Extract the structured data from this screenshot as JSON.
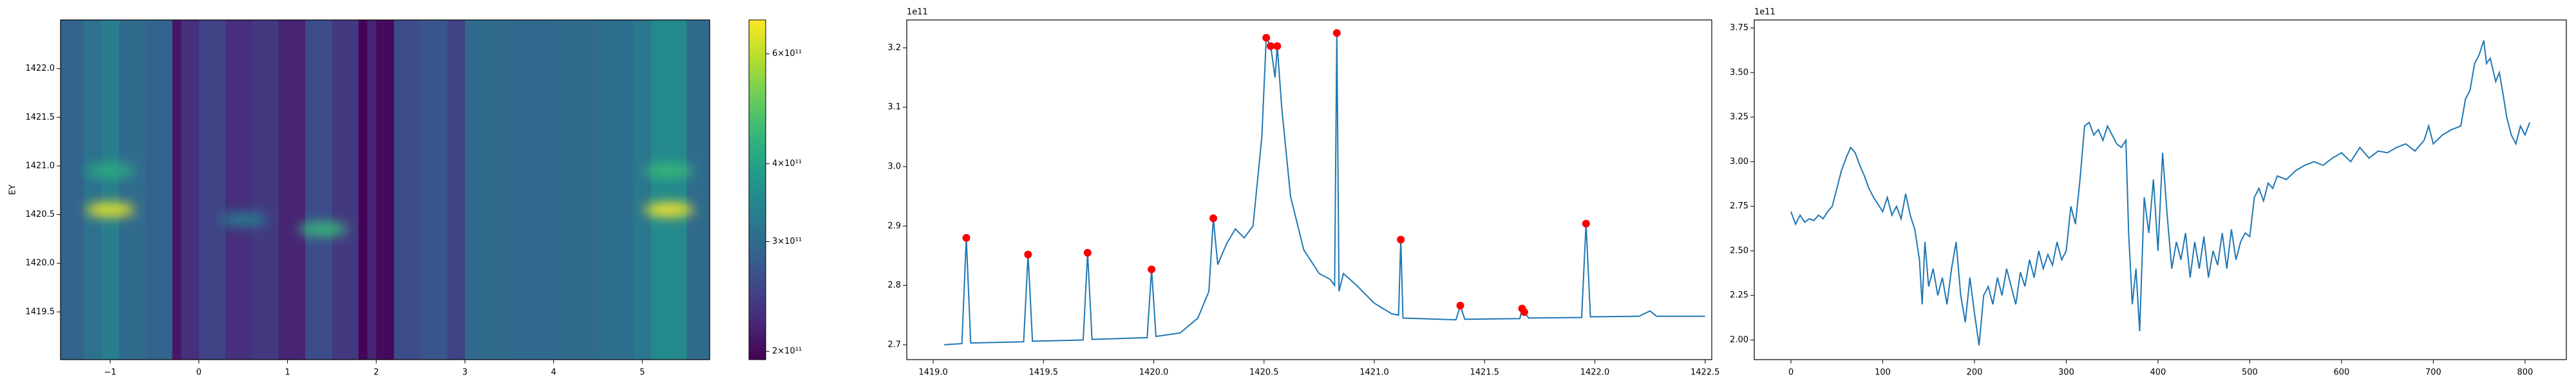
{
  "chart_data": [
    {
      "type": "heatmap",
      "ylabel": "EY",
      "colormap": "viridis",
      "x_edges": [
        -1.56,
        -1.3,
        -1.1,
        -0.9,
        -0.6,
        -0.3,
        -0.2,
        0,
        0.3,
        0.6,
        0.9,
        1.2,
        1.5,
        1.8,
        1.9,
        2.0,
        2.2,
        2.5,
        2.8,
        3.0,
        3.5,
        4.0,
        4.5,
        4.9,
        5.1,
        5.5,
        5.76
      ],
      "values": [
        290000000000.0,
        310000000000.0,
        330000000000.0,
        300000000000.0,
        290000000000.0,
        210000000000.0,
        230000000000.0,
        250000000000.0,
        230000000000.0,
        240000000000.0,
        220000000000.0,
        260000000000.0,
        240000000000.0,
        197000000000.0,
        220000000000.0,
        200000000000.0,
        260000000000.0,
        270000000000.0,
        250000000000.0,
        300000000000.0,
        295000000000.0,
        300000000000.0,
        305000000000.0,
        320000000000.0,
        350000000000.0,
        300000000000.0
      ],
      "spots": [
        {
          "x": -1.0,
          "y": 1420.55,
          "value": 650000000000.0
        },
        {
          "x": -1.0,
          "y": 1420.95,
          "value": 420000000000.0
        },
        {
          "x": 0.5,
          "y": 1420.45,
          "value": 330000000000.0
        },
        {
          "x": 1.4,
          "y": 1420.35,
          "value": 450000000000.0
        },
        {
          "x": 5.3,
          "y": 1420.55,
          "value": 670000000000.0
        },
        {
          "x": 5.3,
          "y": 1420.95,
          "value": 450000000000.0
        }
      ],
      "xlim": [
        -1.56,
        5.76
      ],
      "ylim": [
        1419.01,
        1422.5
      ],
      "xticks": [
        {
          "value": -1,
          "label": "−1"
        },
        0,
        1,
        2,
        3,
        4,
        5
      ],
      "yticks": [
        1419.5,
        {
          "value": 1420,
          "label": "1420.0"
        },
        1420.5,
        {
          "value": 1421,
          "label": "1421.0"
        },
        1421.5,
        {
          "value": 1422,
          "label": "1422.0"
        }
      ],
      "colorbar": {
        "scale": "log",
        "lim": [
          194000000000.0,
          680000000000.0
        ],
        "ticks": [
          {
            "value": 200000000000.0,
            "label": "2×10¹¹"
          },
          {
            "value": 300000000000.0,
            "label": "3×10¹¹"
          },
          {
            "value": 400000000000.0,
            "label": "4×10¹¹"
          },
          {
            "value": 600000000000.0,
            "label": "6×10¹¹"
          }
        ]
      }
    },
    {
      "type": "line",
      "offset_label": "1e11",
      "color": "#1f77b4",
      "x": [
        1419.05,
        1419.13,
        1419.15,
        1419.17,
        1419.41,
        1419.43,
        1419.45,
        1419.68,
        1419.7,
        1419.72,
        1419.97,
        1419.99,
        1420.01,
        1420.12,
        1420.2,
        1420.25,
        1420.27,
        1420.29,
        1420.33,
        1420.37,
        1420.41,
        1420.45,
        1420.49,
        1420.51,
        1420.53,
        1420.55,
        1420.56,
        1420.58,
        1420.62,
        1420.68,
        1420.75,
        1420.8,
        1420.82,
        1420.83,
        1420.84,
        1420.86,
        1420.92,
        1421.0,
        1421.08,
        1421.11,
        1421.12,
        1421.13,
        1421.37,
        1421.39,
        1421.41,
        1421.66,
        1421.67,
        1421.68,
        1421.7,
        1421.94,
        1421.96,
        1421.98,
        1422.2,
        1422.25,
        1422.28,
        1422.5
      ],
      "values": [
        2.7,
        2.702,
        2.88,
        2.703,
        2.705,
        2.852,
        2.706,
        2.708,
        2.855,
        2.709,
        2.712,
        2.827,
        2.714,
        2.72,
        2.745,
        2.79,
        2.913,
        2.835,
        2.87,
        2.895,
        2.88,
        2.9,
        3.05,
        3.217,
        3.203,
        3.15,
        3.203,
        3.1,
        2.95,
        2.86,
        2.82,
        2.81,
        2.8,
        3.225,
        2.79,
        2.82,
        2.8,
        2.77,
        2.752,
        2.75,
        2.877,
        2.745,
        2.742,
        2.766,
        2.743,
        2.744,
        2.761,
        2.755,
        2.745,
        2.746,
        2.904,
        2.747,
        2.748,
        2.757,
        2.748,
        2.748
      ],
      "peaks": {
        "color": "red",
        "x": [
          1419.15,
          1419.43,
          1419.7,
          1419.99,
          1420.27,
          1420.51,
          1420.53,
          1420.56,
          1420.83,
          1421.12,
          1421.39,
          1421.67,
          1421.68,
          1421.96
        ],
        "values": [
          2.88,
          2.852,
          2.855,
          2.827,
          2.913,
          3.217,
          3.203,
          3.203,
          3.225,
          2.877,
          2.766,
          2.761,
          2.755,
          2.904
        ]
      },
      "xlim": [
        1418.88,
        1422.53
      ],
      "ylim": [
        2.675,
        3.247
      ],
      "xticks": [
        {
          "value": 1419,
          "label": "1419.0"
        },
        1419.5,
        {
          "value": 1420,
          "label": "1420.0"
        },
        1420.5,
        {
          "value": 1421,
          "label": "1421.0"
        },
        1421.5,
        {
          "value": 1422,
          "label": "1422.0"
        },
        1422.5
      ],
      "yticks": [
        2.7,
        2.8,
        2.9,
        {
          "value": 3,
          "label": "3.0"
        },
        3.1,
        3.2
      ]
    },
    {
      "type": "line",
      "offset_label": "1e11",
      "color": "#1f77b4",
      "x": [
        0,
        5,
        10,
        15,
        20,
        25,
        30,
        35,
        40,
        45,
        50,
        55,
        60,
        65,
        70,
        75,
        80,
        85,
        90,
        95,
        100,
        105,
        110,
        115,
        120,
        125,
        130,
        135,
        140,
        143,
        146,
        150,
        155,
        160,
        165,
        170,
        175,
        180,
        185,
        190,
        195,
        200,
        205,
        210,
        215,
        220,
        225,
        230,
        235,
        240,
        245,
        250,
        255,
        260,
        265,
        270,
        275,
        280,
        285,
        290,
        295,
        300,
        305,
        310,
        315,
        320,
        325,
        330,
        335,
        340,
        345,
        350,
        355,
        360,
        365,
        368,
        372,
        376,
        380,
        385,
        390,
        395,
        400,
        405,
        410,
        415,
        420,
        425,
        430,
        435,
        440,
        445,
        450,
        455,
        460,
        465,
        470,
        475,
        480,
        485,
        490,
        495,
        500,
        505,
        510,
        515,
        520,
        525,
        530,
        540,
        550,
        560,
        570,
        580,
        590,
        600,
        610,
        620,
        630,
        640,
        650,
        660,
        670,
        680,
        690,
        695,
        700,
        710,
        720,
        730,
        735,
        740,
        745,
        750,
        755,
        758,
        762,
        768,
        772,
        776,
        780,
        785,
        790,
        795,
        800,
        805
      ],
      "values": [
        2.72,
        2.65,
        2.7,
        2.66,
        2.68,
        2.67,
        2.7,
        2.68,
        2.72,
        2.75,
        2.85,
        2.95,
        3.02,
        3.08,
        3.05,
        2.98,
        2.92,
        2.85,
        2.8,
        2.76,
        2.72,
        2.8,
        2.7,
        2.75,
        2.68,
        2.82,
        2.7,
        2.62,
        2.45,
        2.2,
        2.55,
        2.3,
        2.4,
        2.25,
        2.35,
        2.2,
        2.4,
        2.55,
        2.25,
        2.1,
        2.35,
        2.15,
        1.97,
        2.25,
        2.3,
        2.2,
        2.35,
        2.25,
        2.4,
        2.3,
        2.2,
        2.38,
        2.3,
        2.45,
        2.35,
        2.5,
        2.4,
        2.48,
        2.42,
        2.55,
        2.45,
        2.5,
        2.75,
        2.65,
        2.9,
        3.2,
        3.22,
        3.15,
        3.18,
        3.12,
        3.2,
        3.15,
        3.1,
        3.08,
        3.12,
        2.6,
        2.2,
        2.4,
        2.05,
        2.8,
        2.6,
        2.9,
        2.5,
        3.05,
        2.7,
        2.4,
        2.55,
        2.45,
        2.6,
        2.35,
        2.55,
        2.4,
        2.58,
        2.35,
        2.5,
        2.42,
        2.6,
        2.4,
        2.62,
        2.45,
        2.55,
        2.6,
        2.58,
        2.8,
        2.85,
        2.78,
        2.88,
        2.85,
        2.92,
        2.9,
        2.95,
        2.98,
        3.0,
        2.98,
        3.02,
        3.05,
        3.0,
        3.08,
        3.02,
        3.06,
        3.05,
        3.08,
        3.1,
        3.06,
        3.12,
        3.2,
        3.1,
        3.15,
        3.18,
        3.2,
        3.35,
        3.4,
        3.55,
        3.6,
        3.68,
        3.55,
        3.58,
        3.45,
        3.5,
        3.38,
        3.25,
        3.15,
        3.1,
        3.2,
        3.15,
        3.22
      ],
      "xlim": [
        -40,
        845
      ],
      "ylim": [
        1.89,
        3.795
      ],
      "xticks": [
        0,
        100,
        200,
        300,
        400,
        500,
        600,
        700,
        800
      ],
      "yticks": [
        {
          "value": 2,
          "label": "2.00"
        },
        2.25,
        {
          "value": 2.5,
          "label": "2.50"
        },
        2.75,
        {
          "value": 3,
          "label": "3.00"
        },
        3.25,
        {
          "value": 3.5,
          "label": "3.50"
        },
        3.75
      ]
    }
  ]
}
